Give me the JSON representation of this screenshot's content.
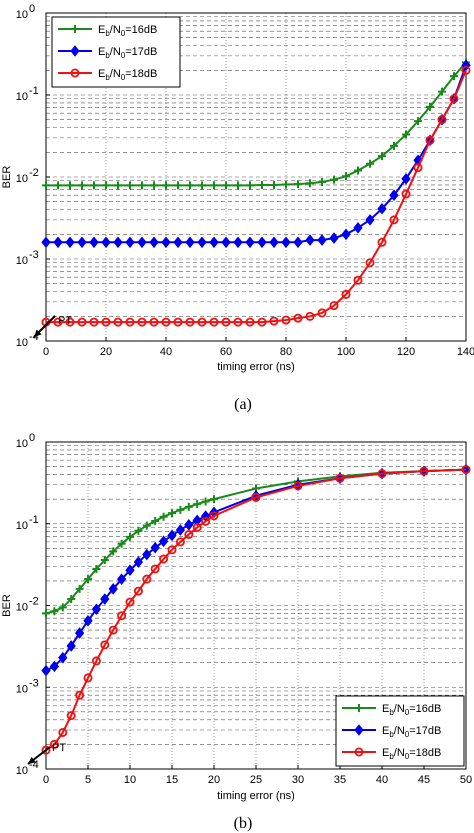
{
  "colors": {
    "green": "#1a8a1a",
    "blue": "#0000ee",
    "red": "#ee1111",
    "grid": "#888888"
  },
  "chart_data": [
    {
      "type": "line",
      "panel": "a",
      "caption": "(a)",
      "xlabel": "timing error (ns)",
      "ylabel": "BER",
      "yscale": "log",
      "xlim": [
        0,
        140
      ],
      "ylim": [
        0.0001,
        1
      ],
      "x_ticks": [
        "0",
        "20",
        "40",
        "60",
        "80",
        "100",
        "120",
        "140"
      ],
      "y_ticks": [
        "10",
        "10",
        "10",
        "10",
        "10"
      ],
      "y_tick_exponents": [
        "-4",
        "-3",
        "-2",
        "-1",
        "0"
      ],
      "grid": true,
      "legend_position": "top-left",
      "annotation": "PT",
      "series": [
        {
          "name_parts": [
            "E",
            "b",
            "/N",
            "0",
            "=16dB"
          ],
          "color": "green",
          "marker": "plus",
          "x": [
            0,
            4,
            8,
            12,
            16,
            20,
            24,
            28,
            32,
            36,
            40,
            44,
            48,
            52,
            56,
            60,
            64,
            68,
            72,
            76,
            80,
            84,
            88,
            92,
            96,
            100,
            104,
            108,
            112,
            116,
            120,
            124,
            128,
            132,
            136,
            140
          ],
          "y": [
            0.0079,
            0.0079,
            0.0079,
            0.0079,
            0.0079,
            0.0079,
            0.0079,
            0.0079,
            0.0079,
            0.0079,
            0.0079,
            0.0079,
            0.0079,
            0.0079,
            0.0079,
            0.0079,
            0.0079,
            0.0079,
            0.008,
            0.008,
            0.0081,
            0.0082,
            0.0084,
            0.0087,
            0.0093,
            0.0102,
            0.012,
            0.0145,
            0.018,
            0.024,
            0.033,
            0.048,
            0.072,
            0.11,
            0.17,
            0.25
          ]
        },
        {
          "name_parts": [
            "E",
            "b",
            "/N",
            "0",
            "=17dB"
          ],
          "color": "blue",
          "marker": "diamond",
          "x": [
            0,
            4,
            8,
            12,
            16,
            20,
            24,
            28,
            32,
            36,
            40,
            44,
            48,
            52,
            56,
            60,
            64,
            68,
            72,
            76,
            80,
            84,
            88,
            92,
            96,
            100,
            104,
            108,
            112,
            116,
            120,
            124,
            128,
            132,
            136,
            140
          ],
          "y": [
            0.0016,
            0.0016,
            0.0016,
            0.0016,
            0.0016,
            0.0016,
            0.0016,
            0.0016,
            0.0016,
            0.0016,
            0.0016,
            0.0016,
            0.0016,
            0.0016,
            0.0016,
            0.0016,
            0.0016,
            0.0016,
            0.0016,
            0.0016,
            0.0016,
            0.0016,
            0.0017,
            0.0017,
            0.0018,
            0.002,
            0.0024,
            0.003,
            0.0041,
            0.006,
            0.0095,
            0.016,
            0.028,
            0.05,
            0.09,
            0.23
          ]
        },
        {
          "name_parts": [
            "E",
            "b",
            "/N",
            "0",
            "=18dB"
          ],
          "color": "red",
          "marker": "circle",
          "x": [
            0,
            4,
            8,
            12,
            16,
            20,
            24,
            28,
            32,
            36,
            40,
            44,
            48,
            52,
            56,
            60,
            64,
            68,
            72,
            76,
            80,
            84,
            88,
            92,
            96,
            100,
            104,
            108,
            112,
            116,
            120,
            124,
            128,
            132,
            136,
            140
          ],
          "y": [
            0.00017,
            0.00017,
            0.00017,
            0.00017,
            0.00017,
            0.00017,
            0.00017,
            0.00017,
            0.00017,
            0.00017,
            0.00017,
            0.00017,
            0.00017,
            0.00017,
            0.00017,
            0.00017,
            0.00017,
            0.00017,
            0.00017,
            0.000175,
            0.00018,
            0.00019,
            0.0002,
            0.00022,
            0.00027,
            0.00037,
            0.00055,
            0.0009,
            0.0016,
            0.003,
            0.0062,
            0.013,
            0.028,
            0.05,
            0.09,
            0.2
          ]
        }
      ]
    },
    {
      "type": "line",
      "panel": "b",
      "caption": "(b)",
      "xlabel": "timing error (ns)",
      "ylabel": "BER",
      "yscale": "log",
      "xlim": [
        0,
        50
      ],
      "ylim": [
        0.0001,
        1
      ],
      "x_ticks": [
        "0",
        "5",
        "10",
        "15",
        "20",
        "25",
        "30",
        "35",
        "40",
        "45",
        "50"
      ],
      "y_ticks": [
        "10",
        "10",
        "10",
        "10",
        "10"
      ],
      "y_tick_exponents": [
        "-4",
        "-3",
        "-2",
        "-1",
        "0"
      ],
      "grid": true,
      "legend_position": "bottom-right",
      "annotation": "PT",
      "series": [
        {
          "name_parts": [
            "E",
            "b",
            "/N",
            "0",
            "=16dB"
          ],
          "color": "green",
          "marker": "plus",
          "x": [
            0,
            1,
            2,
            3,
            4,
            5,
            6,
            7,
            8,
            9,
            10,
            11,
            12,
            13,
            14,
            15,
            16,
            17,
            18,
            19,
            20,
            25,
            30,
            35,
            40,
            45,
            50
          ],
          "y": [
            0.008,
            0.0085,
            0.0095,
            0.012,
            0.016,
            0.021,
            0.028,
            0.036,
            0.046,
            0.057,
            0.069,
            0.082,
            0.095,
            0.108,
            0.122,
            0.135,
            0.148,
            0.161,
            0.174,
            0.187,
            0.2,
            0.27,
            0.33,
            0.38,
            0.42,
            0.44,
            0.46
          ]
        },
        {
          "name_parts": [
            "E",
            "b",
            "/N",
            "0",
            "=17dB"
          ],
          "color": "blue",
          "marker": "diamond",
          "x": [
            0,
            1,
            2,
            3,
            4,
            5,
            6,
            7,
            8,
            9,
            10,
            11,
            12,
            13,
            14,
            15,
            16,
            17,
            18,
            19,
            20,
            25,
            30,
            35,
            40,
            45,
            50
          ],
          "y": [
            0.0016,
            0.0018,
            0.0023,
            0.0032,
            0.0046,
            0.0065,
            0.009,
            0.012,
            0.016,
            0.021,
            0.027,
            0.034,
            0.042,
            0.051,
            0.061,
            0.072,
            0.084,
            0.097,
            0.11,
            0.124,
            0.138,
            0.22,
            0.3,
            0.36,
            0.41,
            0.44,
            0.46
          ]
        },
        {
          "name_parts": [
            "E",
            "b",
            "/N",
            "0",
            "=18dB"
          ],
          "color": "red",
          "marker": "circle",
          "x": [
            0,
            1,
            2,
            3,
            4,
            5,
            6,
            7,
            8,
            9,
            10,
            11,
            12,
            13,
            14,
            15,
            16,
            17,
            18,
            19,
            20,
            25,
            30,
            35,
            40,
            45,
            50
          ],
          "y": [
            0.00017,
            0.0002,
            0.00028,
            0.00045,
            0.0008,
            0.0013,
            0.0021,
            0.0033,
            0.005,
            0.0075,
            0.011,
            0.015,
            0.021,
            0.028,
            0.037,
            0.048,
            0.06,
            0.074,
            0.09,
            0.107,
            0.125,
            0.21,
            0.29,
            0.36,
            0.41,
            0.44,
            0.46
          ]
        }
      ]
    }
  ]
}
